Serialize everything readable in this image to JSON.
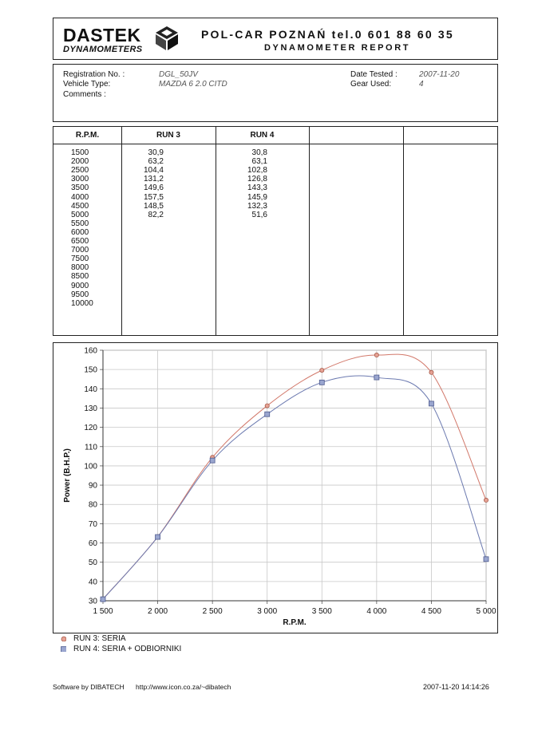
{
  "header": {
    "logo_word": "DASTEK",
    "logo_sub": "DYNAMOMETERS",
    "company": "POL-CAR POZNAŃ tel.0 601 88 60 35",
    "report_title": "DYNAMOMETER REPORT"
  },
  "info": {
    "registration_label": "Registration No. :",
    "registration_value": "DGL_50JV",
    "vehicle_label": "Vehicle Type:",
    "vehicle_value": "MAZDA 6 2.0 CITD",
    "comments_label": "Comments :",
    "date_label": "Date Tested :",
    "date_value": "2007-11-20",
    "gear_label": "Gear Used:",
    "gear_value": "4"
  },
  "table": {
    "headers": [
      "R.P.M.",
      "RUN 3",
      "RUN 4"
    ],
    "rpm": [
      "1500",
      "2000",
      "2500",
      "3000",
      "3500",
      "4000",
      "4500",
      "5000",
      "5500",
      "6000",
      "6500",
      "7000",
      "7500",
      "8000",
      "8500",
      "9000",
      "9500",
      "10000"
    ],
    "run3": [
      "30,9",
      "63,2",
      "104,4",
      "131,2",
      "149,6",
      "157,5",
      "148,5",
      "82,2"
    ],
    "run4": [
      "30,8",
      "63,1",
      "102,8",
      "126,8",
      "143,3",
      "145,9",
      "132,3",
      "51,6"
    ]
  },
  "chart_data": {
    "type": "line",
    "ylabel": "Power (B.H.P.)",
    "xlabel": "R.P.M.",
    "ylim": [
      30,
      160
    ],
    "xlim": [
      1500,
      5000
    ],
    "yticks": [
      "30",
      "40",
      "50",
      "60",
      "70",
      "80",
      "90",
      "100",
      "110",
      "120",
      "130",
      "140",
      "150",
      "160"
    ],
    "xticks": [
      "1 500",
      "2 000",
      "2 500",
      "3 000",
      "3 500",
      "4 000",
      "4 500",
      "5 000"
    ],
    "x": [
      1500,
      2000,
      2500,
      3000,
      3500,
      4000,
      4500,
      5000
    ],
    "series": [
      {
        "name": "RUN 3: SERIA",
        "values": [
          30.9,
          63.2,
          104.4,
          131.2,
          149.6,
          157.5,
          148.5,
          82.2
        ],
        "color": "#d2786a",
        "marker": "circle"
      },
      {
        "name": "RUN 4: SERIA + ODBIORNIKI",
        "values": [
          30.8,
          63.1,
          102.8,
          126.8,
          143.3,
          145.9,
          132.3,
          51.6
        ],
        "color": "#6c7ab0",
        "marker": "square"
      }
    ],
    "grid": true,
    "legend": "bottom-left"
  },
  "footer": {
    "software": "Software by DIBATECH",
    "url": "http://www.icon.co.za/~dibatech",
    "stamp": "2007-11-20 14:14:26"
  }
}
